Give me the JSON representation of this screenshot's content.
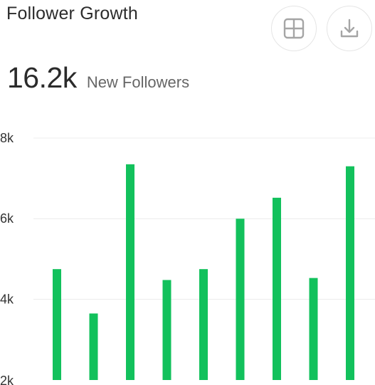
{
  "header": {
    "title": "Follower Growth",
    "table_icon": "table-grid-icon",
    "download_icon": "download-icon"
  },
  "metric": {
    "value": "16.2k",
    "label": "New Followers"
  },
  "colors": {
    "bar": "#12c15c",
    "grid": "#ececec",
    "icon": "#a5a5a5"
  },
  "chart_data": {
    "type": "bar",
    "title": "",
    "xlabel": "",
    "ylabel": "",
    "ylim": [
      2000,
      8000
    ],
    "y_ticks": [
      {
        "value": 2000,
        "label": "2k"
      },
      {
        "value": 4000,
        "label": "4k"
      },
      {
        "value": 6000,
        "label": "6k"
      },
      {
        "value": 8000,
        "label": "8k"
      }
    ],
    "grid": true,
    "values": [
      4750,
      3650,
      7350,
      4480,
      4750,
      6000,
      6520,
      4530,
      7300
    ]
  }
}
